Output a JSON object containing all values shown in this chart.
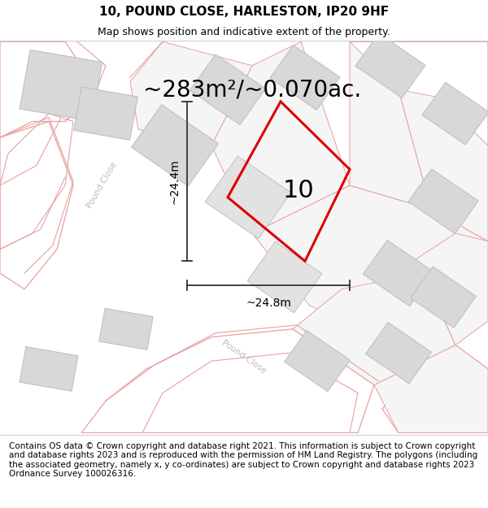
{
  "title": "10, POUND CLOSE, HARLESTON, IP20 9HF",
  "subtitle": "Map shows position and indicative extent of the property.",
  "area_text": "~283m²/~0.070ac.",
  "dim_h": "~24.4m",
  "dim_w": "~24.8m",
  "number_label": "10",
  "footer_text": "Contains OS data © Crown copyright and database right 2021. This information is subject to Crown copyright and database rights 2023 and is reproduced with the permission of HM Land Registry. The polygons (including the associated geometry, namely x, y co-ordinates) are subject to Crown copyright and database rights 2023 Ordnance Survey 100026316.",
  "map_bg": "#ffffff",
  "plot_line_color": "#dd0000",
  "road_line_color": "#e8a0a0",
  "parcel_line_color": "#d0b0b0",
  "building_fill": "#d8d8d8",
  "building_line": "#c0c0c0",
  "road_fill": "#f5f5f5",
  "white_road_fill": "#ffffff",
  "dim_line_color": "#333333",
  "street_label_color": "#bbbbbb",
  "title_fontsize": 11,
  "subtitle_fontsize": 9,
  "area_fontsize": 20,
  "number_fontsize": 22,
  "dim_fontsize": 10,
  "footer_fontsize": 7.5,
  "street_fontsize": 7.5
}
